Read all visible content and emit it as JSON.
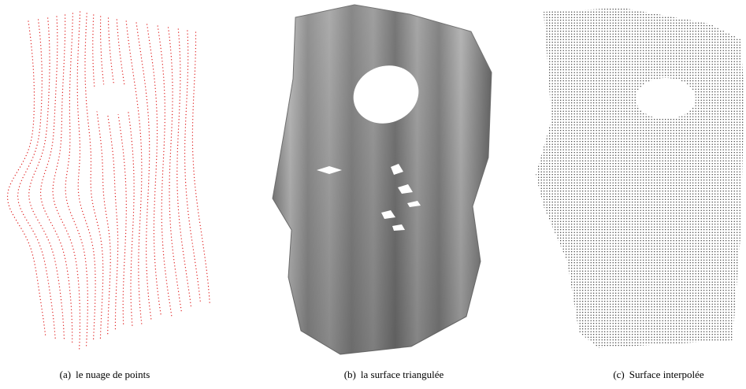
{
  "figure": {
    "subfigures": [
      {
        "label": "(a)",
        "caption": "le nuage de points"
      },
      {
        "label": "(b)",
        "caption": "la surface triangulée"
      },
      {
        "label": "(c)",
        "caption": "Surface interpolée"
      }
    ]
  }
}
